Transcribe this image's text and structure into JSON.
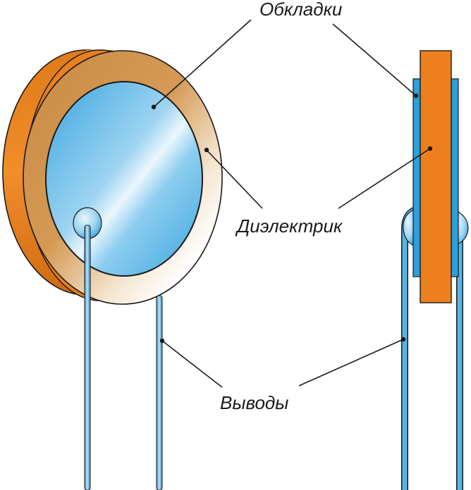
{
  "labels": {
    "plates": "Обкладки",
    "dielectric": "Диэлектрик",
    "leads": "Выводы"
  },
  "colors": {
    "dielectric_orange": "#e87c1e",
    "dielectric_ring": "#c9873a",
    "plate_blue": "#3fa9e0",
    "lead_blue": "#4fb2e3",
    "line": "#1a1a1a"
  }
}
